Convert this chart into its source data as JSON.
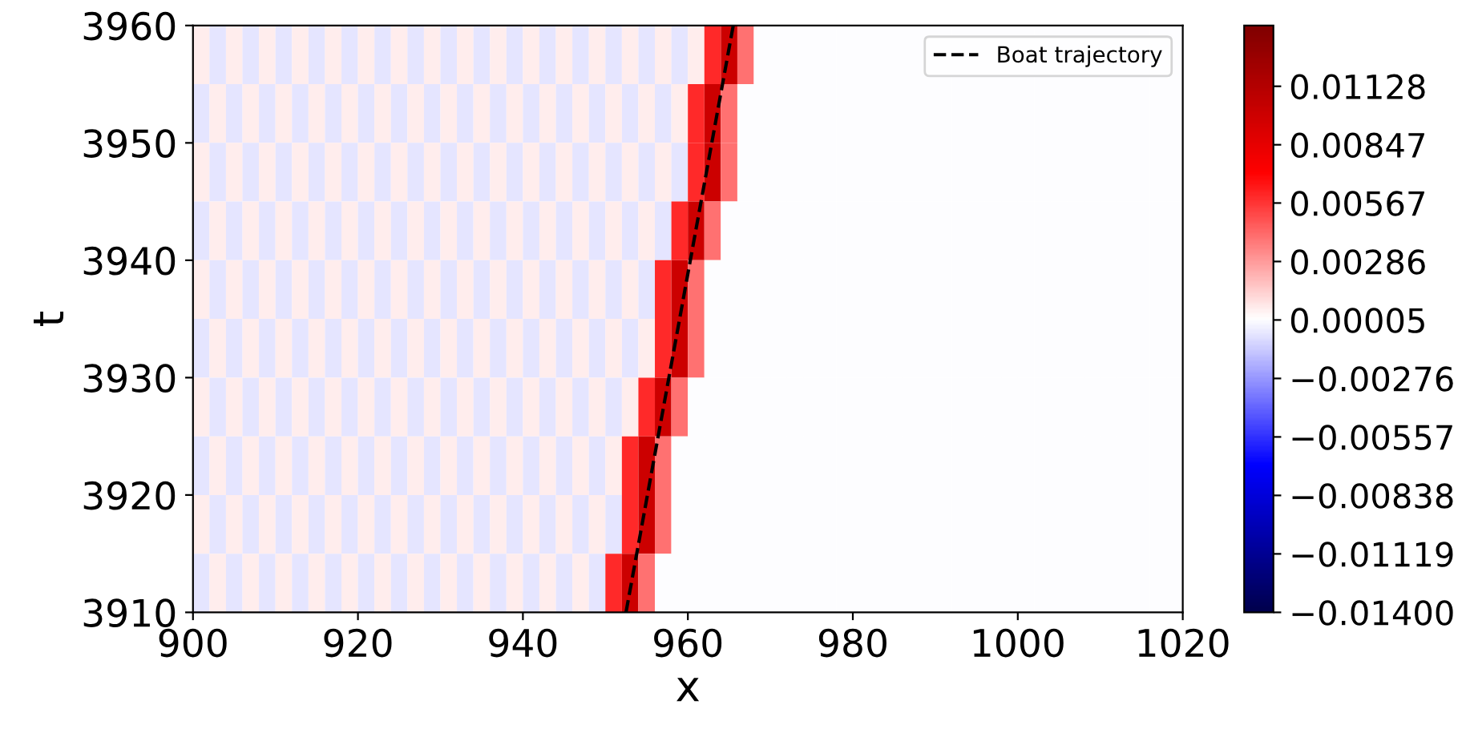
{
  "chart_data": {
    "type": "heatmap",
    "xlabel": "x",
    "ylabel": "t",
    "xlim": [
      900,
      1020
    ],
    "xticks": [
      900,
      920,
      940,
      960,
      980,
      1000,
      1020
    ],
    "ylim": [
      3910,
      3960
    ],
    "yticks": [
      3910,
      3920,
      3930,
      3940,
      3950,
      3960
    ],
    "clim": [
      -0.014,
      0.0142
    ],
    "cticks": [
      {
        "value": -0.014,
        "label": "−0.01400"
      },
      {
        "value": -0.01119,
        "label": "−0.01119"
      },
      {
        "value": -0.00838,
        "label": "−0.00838"
      },
      {
        "value": -0.00557,
        "label": "−0.00557"
      },
      {
        "value": -0.00276,
        "label": "−0.00276"
      },
      {
        "value": 5e-05,
        "label": "0.00005"
      },
      {
        "value": 0.00286,
        "label": "0.00286"
      },
      {
        "value": 0.00567,
        "label": "0.00567"
      },
      {
        "value": 0.00847,
        "label": "0.00847"
      },
      {
        "value": 0.01128,
        "label": "0.01128"
      }
    ],
    "x": [
      901,
      903,
      905,
      907,
      909,
      911,
      913,
      915,
      917,
      919,
      921,
      923,
      925,
      927,
      929,
      931,
      933,
      935,
      937,
      939,
      941,
      943,
      945,
      947,
      949,
      951,
      953,
      955,
      957,
      959,
      961,
      963,
      965,
      967,
      969,
      971,
      973,
      975,
      977,
      979,
      981,
      983,
      985,
      987,
      989,
      991,
      993,
      995,
      997,
      999,
      1001,
      1003,
      1005,
      1007,
      1009,
      1011,
      1013,
      1015,
      1017,
      1019
    ],
    "cells": [
      [
        0.0006,
        -0.0006,
        0.0006,
        -0.0006,
        0.0006,
        -0.0006,
        0.0006,
        -0.0006,
        0.0006,
        -0.0006,
        0.0006,
        -0.0006,
        0.0006,
        -0.0006,
        0.0006,
        -0.0006,
        0.0006,
        -0.0006,
        0.0006,
        -0.0006,
        0.0006,
        -0.0006,
        0.0006,
        -0.0006,
        0.0006,
        -0.0006,
        0.0006,
        -0.0006,
        0.0006,
        -0.0006,
        0.0006,
        0.006,
        0.01,
        0.004,
        0.0001,
        0.0001,
        0.0001,
        0.0001,
        0.0001,
        0.0001,
        0.0001,
        0.0001,
        0.0001,
        0.0001,
        0.0001,
        0.0001,
        0.0001,
        0.0001,
        0.0001,
        0.0001,
        0.0001,
        0.0001,
        0.0001,
        0.0001,
        0.0001,
        0.0001,
        0.0001,
        0.0001,
        0.0001,
        0.0001
      ],
      [
        -0.0006,
        0.0006,
        -0.0006,
        0.0006,
        -0.0006,
        0.0006,
        -0.0006,
        0.0006,
        -0.0006,
        0.0006,
        -0.0006,
        0.0006,
        -0.0006,
        0.0006,
        -0.0006,
        0.0006,
        -0.0006,
        0.0006,
        -0.0006,
        0.0006,
        -0.0006,
        0.0006,
        -0.0006,
        0.0006,
        -0.0006,
        0.0006,
        -0.0006,
        0.0006,
        -0.0006,
        0.0006,
        0.006,
        0.01,
        0.004,
        0.0001,
        0.0001,
        0.0001,
        0.0001,
        0.0001,
        0.0001,
        0.0001,
        0.0001,
        0.0001,
        0.0001,
        0.0001,
        0.0001,
        0.0001,
        0.0001,
        0.0001,
        0.0001,
        0.0001,
        0.0001,
        0.0001,
        0.0001,
        0.0001,
        0.0001,
        0.0001,
        0.0001,
        0.0001,
        0.0001,
        0.0001
      ],
      [
        0.0006,
        -0.0006,
        0.0006,
        -0.0006,
        0.0006,
        -0.0006,
        0.0006,
        -0.0006,
        0.0006,
        -0.0006,
        0.0006,
        -0.0006,
        0.0006,
        -0.0006,
        0.0006,
        -0.0006,
        0.0006,
        -0.0006,
        0.0006,
        -0.0006,
        0.0006,
        -0.0006,
        0.0006,
        -0.0006,
        0.0006,
        -0.0006,
        0.0006,
        -0.0006,
        0.0006,
        -0.0006,
        0.006,
        0.01,
        0.004,
        0.0001,
        0.0001,
        0.0001,
        0.0001,
        0.0001,
        0.0001,
        0.0001,
        0.0001,
        0.0001,
        0.0001,
        0.0001,
        0.0001,
        0.0001,
        0.0001,
        0.0001,
        0.0001,
        0.0001,
        0.0001,
        0.0001,
        0.0001,
        0.0001,
        0.0001,
        0.0001,
        0.0001,
        0.0001,
        0.0001,
        0.0001
      ],
      [
        -0.0006,
        0.0006,
        -0.0006,
        0.0006,
        -0.0006,
        0.0006,
        -0.0006,
        0.0006,
        -0.0006,
        0.0006,
        -0.0006,
        0.0006,
        -0.0006,
        0.0006,
        -0.0006,
        0.0006,
        -0.0006,
        0.0006,
        -0.0006,
        0.0006,
        -0.0006,
        0.0006,
        -0.0006,
        0.0006,
        -0.0006,
        0.0006,
        -0.0006,
        0.0006,
        -0.0006,
        0.006,
        0.01,
        0.004,
        0.0001,
        0.0001,
        0.0001,
        0.0001,
        0.0001,
        0.0001,
        0.0001,
        0.0001,
        0.0001,
        0.0001,
        0.0001,
        0.0001,
        0.0001,
        0.0001,
        0.0001,
        0.0001,
        0.0001,
        0.0001,
        0.0001,
        0.0001,
        0.0001,
        0.0001,
        0.0001,
        0.0001,
        0.0001,
        0.0001,
        0.0001,
        0.0001
      ],
      [
        0.0006,
        -0.0006,
        0.0006,
        -0.0006,
        0.0006,
        -0.0006,
        0.0006,
        -0.0006,
        0.0006,
        -0.0006,
        0.0006,
        -0.0006,
        0.0006,
        -0.0006,
        0.0006,
        -0.0006,
        0.0006,
        -0.0006,
        0.0006,
        -0.0006,
        0.0006,
        -0.0006,
        0.0006,
        -0.0006,
        0.0006,
        -0.0006,
        0.0006,
        -0.0006,
        0.006,
        0.01,
        0.004,
        0.0001,
        0.0001,
        0.0001,
        0.0001,
        0.0001,
        0.0001,
        0.0001,
        0.0001,
        0.0001,
        0.0001,
        0.0001,
        0.0001,
        0.0001,
        0.0001,
        0.0001,
        0.0001,
        0.0001,
        0.0001,
        0.0001,
        0.0001,
        0.0001,
        0.0001,
        0.0001,
        0.0001,
        0.0001,
        0.0001,
        0.0001,
        0.0001,
        0.0001
      ],
      [
        -0.0006,
        0.0006,
        -0.0006,
        0.0006,
        -0.0006,
        0.0006,
        -0.0006,
        0.0006,
        -0.0006,
        0.0006,
        -0.0006,
        0.0006,
        -0.0006,
        0.0006,
        -0.0006,
        0.0006,
        -0.0006,
        0.0006,
        -0.0006,
        0.0006,
        -0.0006,
        0.0006,
        -0.0006,
        0.0006,
        -0.0006,
        0.0006,
        -0.0006,
        0.0006,
        0.006,
        0.01,
        0.004,
        0.0001,
        0.0001,
        0.0001,
        0.0001,
        0.0001,
        0.0001,
        0.0001,
        0.0001,
        0.0001,
        0.0001,
        0.0001,
        0.0001,
        0.0001,
        0.0001,
        0.0001,
        0.0001,
        0.0001,
        0.0001,
        0.0001,
        0.0001,
        0.0001,
        0.0001,
        0.0001,
        0.0001,
        0.0001,
        0.0001,
        0.0001,
        0.0001,
        0.0001
      ],
      [
        0.0006,
        -0.0006,
        0.0006,
        -0.0006,
        0.0006,
        -0.0006,
        0.0006,
        -0.0006,
        0.0006,
        -0.0006,
        0.0006,
        -0.0006,
        0.0006,
        -0.0006,
        0.0006,
        -0.0006,
        0.0006,
        -0.0006,
        0.0006,
        -0.0006,
        0.0006,
        -0.0006,
        0.0006,
        -0.0006,
        0.0006,
        -0.0006,
        0.0006,
        0.006,
        0.01,
        0.004,
        0.0001,
        0.0001,
        0.0001,
        0.0001,
        0.0001,
        0.0001,
        0.0001,
        0.0001,
        0.0001,
        0.0001,
        0.0001,
        0.0001,
        0.0001,
        0.0001,
        0.0001,
        0.0001,
        0.0001,
        0.0001,
        0.0001,
        0.0001,
        0.0001,
        0.0001,
        0.0001,
        0.0001,
        0.0001,
        0.0001,
        0.0001,
        0.0001,
        0.0001,
        0.0001
      ],
      [
        -0.0006,
        0.0006,
        -0.0006,
        0.0006,
        -0.0006,
        0.0006,
        -0.0006,
        0.0006,
        -0.0006,
        0.0006,
        -0.0006,
        0.0006,
        -0.0006,
        0.0006,
        -0.0006,
        0.0006,
        -0.0006,
        0.0006,
        -0.0006,
        0.0006,
        -0.0006,
        0.0006,
        -0.0006,
        0.0006,
        -0.0006,
        0.0006,
        0.006,
        0.01,
        0.004,
        0.0001,
        0.0001,
        0.0001,
        0.0001,
        0.0001,
        0.0001,
        0.0001,
        0.0001,
        0.0001,
        0.0001,
        0.0001,
        0.0001,
        0.0001,
        0.0001,
        0.0001,
        0.0001,
        0.0001,
        0.0001,
        0.0001,
        0.0001,
        0.0001,
        0.0001,
        0.0001,
        0.0001,
        0.0001,
        0.0001,
        0.0001,
        0.0001,
        0.0001,
        0.0001,
        0.0001
      ],
      [
        0.0006,
        -0.0006,
        0.0006,
        -0.0006,
        0.0006,
        -0.0006,
        0.0006,
        -0.0006,
        0.0006,
        -0.0006,
        0.0006,
        -0.0006,
        0.0006,
        -0.0006,
        0.0006,
        -0.0006,
        0.0006,
        -0.0006,
        0.0006,
        -0.0006,
        0.0006,
        -0.0006,
        0.0006,
        -0.0006,
        0.0006,
        -0.0006,
        0.006,
        0.01,
        0.004,
        0.0001,
        0.0001,
        0.0001,
        0.0001,
        0.0001,
        0.0001,
        0.0001,
        0.0001,
        0.0001,
        0.0001,
        0.0001,
        0.0001,
        0.0001,
        0.0001,
        0.0001,
        0.0001,
        0.0001,
        0.0001,
        0.0001,
        0.0001,
        0.0001,
        0.0001,
        0.0001,
        0.0001,
        0.0001,
        0.0001,
        0.0001,
        0.0001,
        0.0001,
        0.0001,
        0.0001
      ],
      [
        -0.0006,
        0.0006,
        -0.0006,
        0.0006,
        -0.0006,
        0.0006,
        -0.0006,
        0.0006,
        -0.0006,
        0.0006,
        -0.0006,
        0.0006,
        -0.0006,
        0.0006,
        -0.0006,
        0.0006,
        -0.0006,
        0.0006,
        -0.0006,
        0.0006,
        -0.0006,
        0.0006,
        -0.0006,
        0.0006,
        -0.0006,
        0.006,
        0.01,
        0.004,
        0.0001,
        0.0001,
        0.0001,
        0.0001,
        0.0001,
        0.0001,
        0.0001,
        0.0001,
        0.0001,
        0.0001,
        0.0001,
        0.0001,
        0.0001,
        0.0001,
        0.0001,
        0.0001,
        0.0001,
        0.0001,
        0.0001,
        0.0001,
        0.0001,
        0.0001,
        0.0001,
        0.0001,
        0.0001,
        0.0001,
        0.0001,
        0.0001,
        0.0001,
        0.0001,
        0.0001,
        0.0001
      ]
    ],
    "series": [
      {
        "type": "line",
        "name": "Boat trajectory",
        "color": "#000000",
        "line_style": "dashed",
        "x": [
          952.5,
          965.5
        ],
        "values": [
          3910,
          3960
        ]
      }
    ],
    "legend": "top right",
    "grid": false
  }
}
